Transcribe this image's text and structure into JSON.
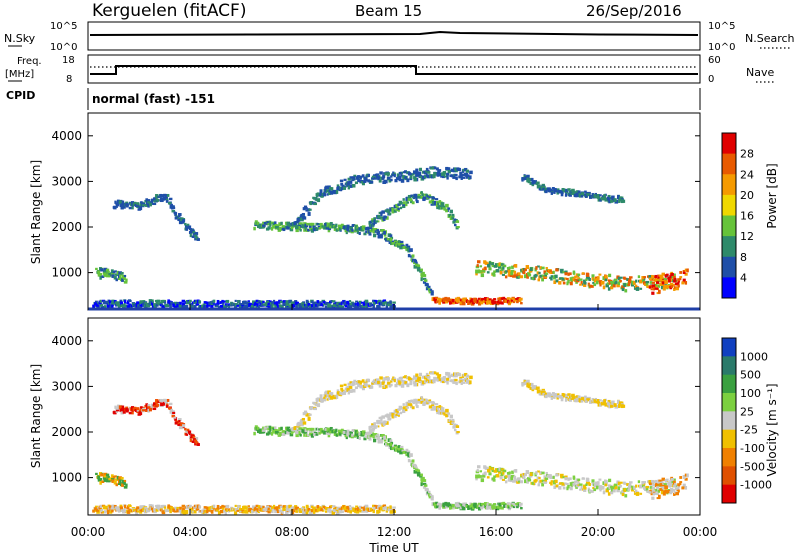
{
  "header": {
    "station": "Kerguelen (fitACF)",
    "beam": "Beam 15",
    "date": "26/Sep/2016"
  },
  "top_panels": {
    "nsky_label": "N.Sky",
    "nsky_ticks": [
      "10^5",
      "10^0"
    ],
    "nsearch_label": "N.Search",
    "nsearch_ticks": [
      "10^5",
      "10^0"
    ],
    "freq_label_1": "Freq.",
    "freq_label_2": "[MHz]",
    "freq_ticks": [
      "18",
      "8"
    ],
    "nave_label": "Nave",
    "nave_ticks": [
      "60",
      "0"
    ],
    "cpid_label": "CPID",
    "cpid_value": "normal (fast) -151"
  },
  "chart_data": [
    {
      "type": "heatmap",
      "name": "power-panel",
      "ylabel": "Slant Range [km]",
      "ylim": [
        180,
        4500
      ],
      "yticks": [
        "1000",
        "2000",
        "3000",
        "4000"
      ],
      "xlim": [
        "00:00",
        "24:00"
      ],
      "colorbar_label": "Power [dB]",
      "colorbar_ticks": [
        "4",
        "8",
        "12",
        "16",
        "20",
        "24",
        "28"
      ],
      "colors": [
        "#0000ff",
        "#1f4fa8",
        "#2e8a6a",
        "#66c33a",
        "#f0d800",
        "#f59a00",
        "#e85a00",
        "#e00000"
      ]
    },
    {
      "type": "heatmap",
      "name": "velocity-panel",
      "ylabel": "Slant Range [km]",
      "ylim": [
        180,
        4500
      ],
      "yticks": [
        "1000",
        "2000",
        "3000",
        "4000"
      ],
      "xlabel": "Time UT",
      "xticks": [
        "00:00",
        "04:00",
        "08:00",
        "12:00",
        "16:00",
        "20:00",
        "00:00"
      ],
      "colorbar_label": "Velocity [m s⁻¹]",
      "colorbar_ticks": [
        "1000",
        "500",
        "100",
        "25",
        "-25",
        "-100",
        "-500",
        "-1000"
      ],
      "colors": [
        "#1040c0",
        "#2a7a6a",
        "#3aa040",
        "#7cd040",
        "#c8c8c8",
        "#f0c000",
        "#f08000",
        "#e05000",
        "#e00000"
      ]
    }
  ]
}
